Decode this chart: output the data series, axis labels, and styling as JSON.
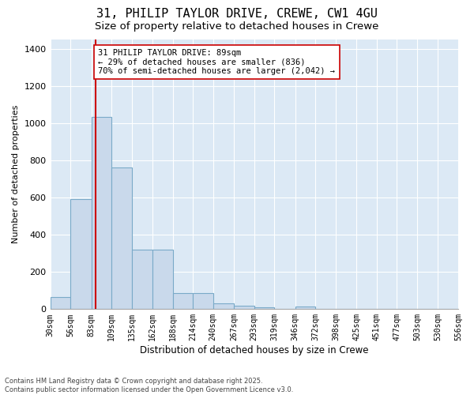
{
  "title1": "31, PHILIP TAYLOR DRIVE, CREWE, CW1 4GU",
  "title2": "Size of property relative to detached houses in Crewe",
  "xlabel": "Distribution of detached houses by size in Crewe",
  "ylabel": "Number of detached properties",
  "bar_edges": [
    30,
    56,
    83,
    109,
    135,
    162,
    188,
    214,
    240,
    267,
    293,
    319,
    346,
    372,
    398,
    425,
    451,
    477,
    503,
    530,
    556
  ],
  "bar_heights": [
    65,
    590,
    1035,
    760,
    320,
    320,
    85,
    85,
    30,
    20,
    10,
    0,
    15,
    0,
    0,
    0,
    0,
    0,
    0,
    0
  ],
  "bar_color": "#c9d9eb",
  "bar_edge_color": "#7aaac8",
  "bar_linewidth": 0.8,
  "vline_x": 89,
  "vline_color": "#cc0000",
  "vline_linewidth": 1.5,
  "ylim": [
    0,
    1450
  ],
  "yticks": [
    0,
    200,
    400,
    600,
    800,
    1000,
    1200,
    1400
  ],
  "grid_color": "#ffffff",
  "background_color": "#dce9f5",
  "annotation_text": "31 PHILIP TAYLOR DRIVE: 89sqm\n← 29% of detached houses are smaller (836)\n70% of semi-detached houses are larger (2,042) →",
  "annotation_fontsize": 7.5,
  "annotation_box_color": "#ffffff",
  "annotation_border_color": "#cc0000",
  "footer_text": "Contains HM Land Registry data © Crown copyright and database right 2025.\nContains public sector information licensed under the Open Government Licence v3.0.",
  "title1_fontsize": 11,
  "title2_fontsize": 9.5,
  "xlabel_fontsize": 8.5,
  "ylabel_fontsize": 8,
  "tick_fontsize": 7,
  "ytick_fontsize": 8
}
